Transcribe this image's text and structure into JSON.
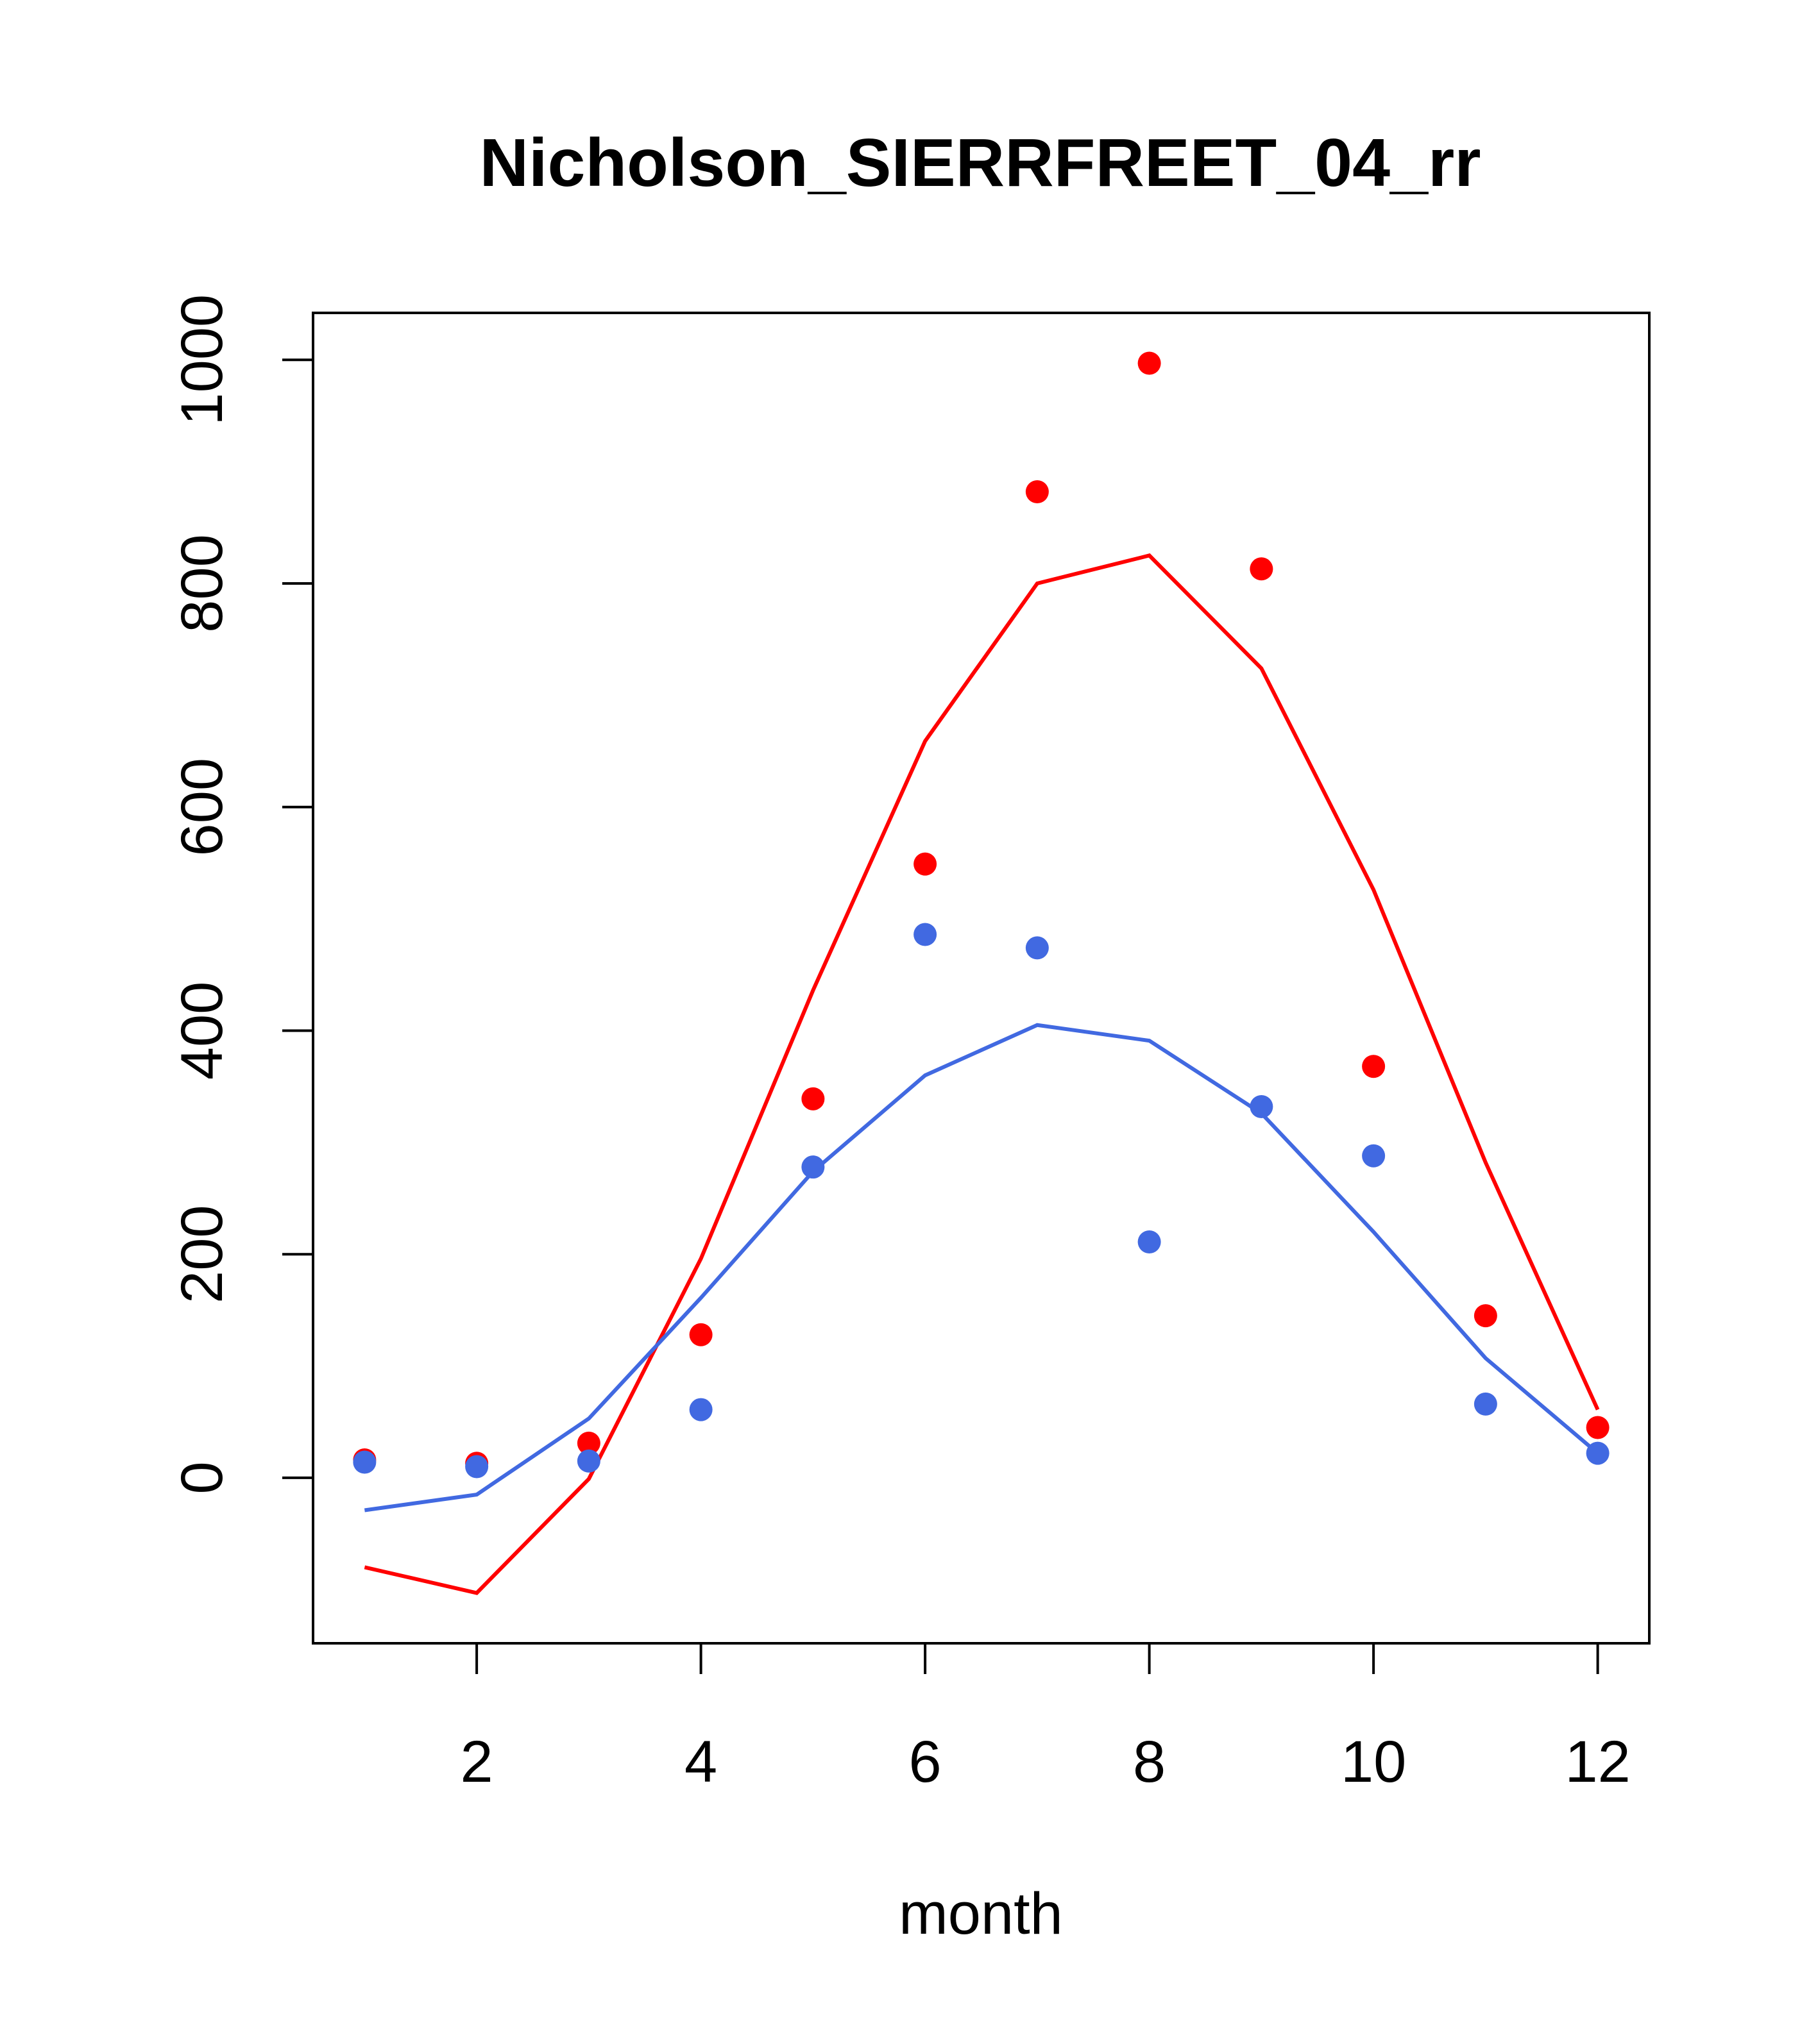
{
  "chart_data": {
    "type": "line",
    "title": "Nicholson_SIERRFREET_04_rr",
    "xlabel": "month",
    "ylabel": "",
    "xlim": [
      0.54,
      12.46
    ],
    "ylim": [
      -148,
      1042
    ],
    "x_ticks": [
      2,
      4,
      6,
      8,
      10,
      12
    ],
    "x_tick_labels": [
      "2",
      "4",
      "6",
      "8",
      "10",
      "12"
    ],
    "y_ticks": [
      0,
      200,
      400,
      600,
      800,
      1000
    ],
    "y_tick_labels": [
      "0",
      "200",
      "400",
      "600",
      "800",
      "1000"
    ],
    "grid": false,
    "x": [
      1,
      2,
      3,
      4,
      5,
      6,
      7,
      8,
      9,
      10,
      11,
      12
    ],
    "series": [
      {
        "name": "red points",
        "kind": "points",
        "color": "#ff0000",
        "values": [
          16,
          13,
          31,
          128,
          339,
          549,
          882,
          997,
          813,
          368,
          145,
          45
        ]
      },
      {
        "name": "blue points",
        "kind": "points",
        "color": "#4169e1",
        "values": [
          14,
          10,
          15,
          61,
          278,
          486,
          474,
          211,
          332,
          288,
          66,
          22
        ]
      },
      {
        "name": "red line",
        "kind": "line",
        "color": "#ff0000",
        "values": [
          -80,
          -103,
          -1,
          196,
          436,
          659,
          800,
          825,
          724,
          526,
          282,
          61
        ]
      },
      {
        "name": "blue line",
        "kind": "line",
        "color": "#4169e1",
        "values": [
          -29,
          -15,
          53,
          161,
          274,
          360,
          405,
          391,
          326,
          220,
          107,
          22
        ]
      }
    ]
  }
}
